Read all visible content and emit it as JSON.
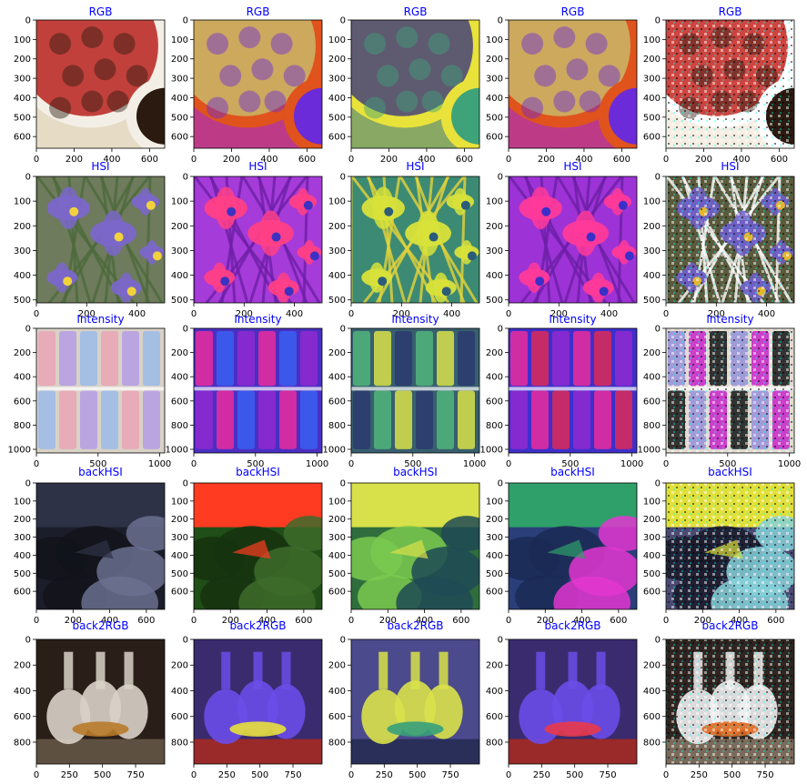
{
  "chart_data": {
    "type": "image-grid",
    "rows": 5,
    "cols": 5,
    "title_color": "#0000ff",
    "row_titles": [
      "RGB",
      "HSI",
      "Intensity",
      "backHSI",
      "back2RGB"
    ],
    "column_variants": [
      "original-color",
      "purple-magenta-map",
      "viridis-like-map",
      "purple-magenta-map",
      "noisy-saturated"
    ],
    "row_scenes": [
      "strawberries",
      "iris-flowers",
      "pastel-chalks",
      "dark-rocks",
      "glass-decanters"
    ],
    "axes": [
      {
        "x_ticks": [
          "0",
          "200",
          "400",
          "600"
        ],
        "y_ticks": [
          "0",
          "100",
          "200",
          "300",
          "400",
          "500",
          "600"
        ],
        "xlim": [
          0,
          680
        ],
        "ylim": [
          0,
          660
        ]
      },
      {
        "x_ticks": [
          "0",
          "200",
          "400"
        ],
        "y_ticks": [
          "0",
          "100",
          "200",
          "300",
          "400",
          "500"
        ],
        "xlim": [
          0,
          510
        ],
        "ylim": [
          0,
          512
        ]
      },
      {
        "x_ticks": [
          "0",
          "500",
          "1000"
        ],
        "y_ticks": [
          "0",
          "200",
          "400",
          "600",
          "800",
          "1000"
        ],
        "xlim": [
          0,
          1040
        ],
        "ylim": [
          0,
          1030
        ]
      },
      {
        "x_ticks": [
          "0",
          "200",
          "400",
          "600"
        ],
        "y_ticks": [
          "0",
          "100",
          "200",
          "300",
          "400",
          "500",
          "600"
        ],
        "xlim": [
          0,
          700
        ],
        "ylim": [
          0,
          700
        ]
      },
      {
        "x_ticks": [
          "0",
          "250",
          "500",
          "750"
        ],
        "y_ticks": [
          "0",
          "200",
          "400",
          "600",
          "800"
        ],
        "xlim": [
          0,
          970
        ],
        "ylim": [
          0,
          970
        ]
      }
    ]
  }
}
